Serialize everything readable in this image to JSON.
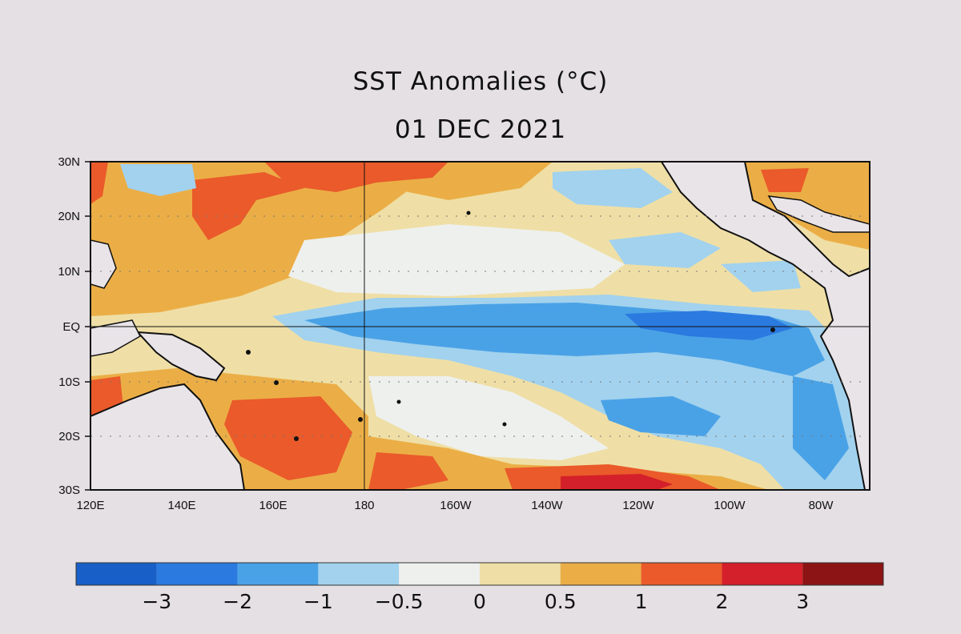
{
  "title": "SST Anomalies (°C)",
  "date": "01 DEC 2021",
  "latitude_labels": [
    "30N",
    "20N",
    "10N",
    "EQ",
    "10S",
    "20S",
    "30S"
  ],
  "longitude_labels": [
    "120E",
    "140E",
    "160E",
    "180",
    "160W",
    "140W",
    "120W",
    "100W",
    "80W"
  ],
  "colorbar": {
    "colors": [
      "#1860c8",
      "#2a7ae0",
      "#4aa2e6",
      "#a2d2ee",
      "#eef0ee",
      "#efdfa6",
      "#ebae46",
      "#ea5a2a",
      "#d4202a",
      "#8c1414"
    ],
    "tick_labels": [
      "−3",
      "−2",
      "−1",
      "−0.5",
      "0",
      "0.5",
      "1",
      "2",
      "3"
    ]
  },
  "legend": {
    "land": "#e8e4e8",
    "ocean_warm": "#ebae46",
    "ocean_cool": "#4aa2e6"
  }
}
